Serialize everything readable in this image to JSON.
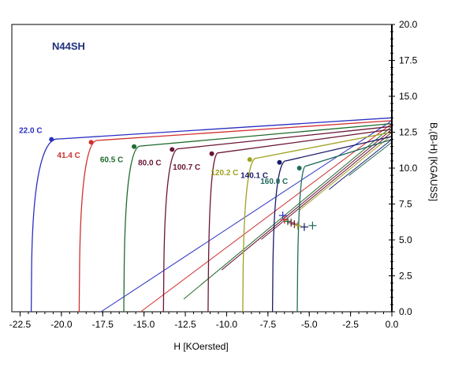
{
  "chart_data": {
    "type": "line",
    "title": "N44SH",
    "xlabel": "H  [KOersted]",
    "ylabel": "B,(B-H) [KGAUSS]",
    "xlim": [
      -23.0,
      0.0
    ],
    "ylim": [
      0.0,
      20.0
    ],
    "x_ticks": [
      "-22.5",
      "-20.0",
      "-17.5",
      "-15.0",
      "-12.5",
      "-10.0",
      "-7.5",
      "-5.0",
      "-2.5",
      "0.0"
    ],
    "x_tick_values": [
      -22.5,
      -20.0,
      -17.5,
      -15.0,
      -12.5,
      -10.0,
      -7.5,
      -5.0,
      -2.5,
      0.0
    ],
    "y_ticks": [
      "0.0",
      "2.5",
      "5.0",
      "7.5",
      "10.0",
      "12.5",
      "15.0",
      "17.5",
      "20.0"
    ],
    "y_tick_values": [
      0.0,
      2.5,
      5.0,
      7.5,
      10.0,
      12.5,
      15.0,
      17.5,
      20.0
    ],
    "grid": false,
    "series": [
      {
        "name": "22.0 C",
        "color": "#2a2fc0",
        "br": 13.5,
        "hc": -21.8,
        "hk": -20.6,
        "knee_b": 12.0,
        "label_h": -20.6,
        "label_b": 12.0,
        "op_h": -6.6,
        "op_b": 6.7
      },
      {
        "name": "41.4 C",
        "color": "#d23030",
        "br": 13.3,
        "hc": -18.9,
        "hk": -18.2,
        "knee_b": 11.9,
        "label_h": -18.2,
        "label_b": 11.8,
        "op_h": -6.5,
        "op_b": 6.4
      },
      {
        "name": "60.5 C",
        "color": "#1f6b2c",
        "br": 13.1,
        "hc": -16.2,
        "hk": -15.6,
        "knee_b": 11.5,
        "label_h": -15.6,
        "label_b": 11.5,
        "op_h": -6.3,
        "op_b": 6.3
      },
      {
        "name": "80.0 C",
        "color": "#6a1535",
        "br": 12.9,
        "hc": -13.8,
        "hk": -13.3,
        "knee_b": 11.3,
        "label_h": -13.3,
        "label_b": 11.3,
        "op_h": -6.1,
        "op_b": 6.2
      },
      {
        "name": "100.7 C",
        "color": "#6a1535",
        "br": 12.7,
        "hc": -11.1,
        "hk": -10.9,
        "knee_b": 11.0,
        "label_h": -10.9,
        "label_b": 11.0,
        "op_h": -5.9,
        "op_b": 6.1
      },
      {
        "name": "120.2 C",
        "color": "#a0a020",
        "br": 12.5,
        "hc": -9.0,
        "hk": -8.6,
        "knee_b": 10.6,
        "label_h": -8.6,
        "label_b": 10.6,
        "op_h": -5.7,
        "op_b": 6.0
      },
      {
        "name": "140.1 C",
        "color": "#1a1a6a",
        "br": 12.2,
        "hc": -7.2,
        "hk": -6.8,
        "knee_b": 10.4,
        "label_h": -6.8,
        "label_b": 10.4,
        "op_h": -5.3,
        "op_b": 5.9
      },
      {
        "name": "160.0 C",
        "color": "#1f6b5a",
        "br": 12.0,
        "hc": -5.7,
        "hk": -5.6,
        "knee_b": 10.0,
        "label_h": -5.6,
        "label_b": 10.0,
        "op_h": -4.8,
        "op_b": 6.0
      }
    ]
  }
}
